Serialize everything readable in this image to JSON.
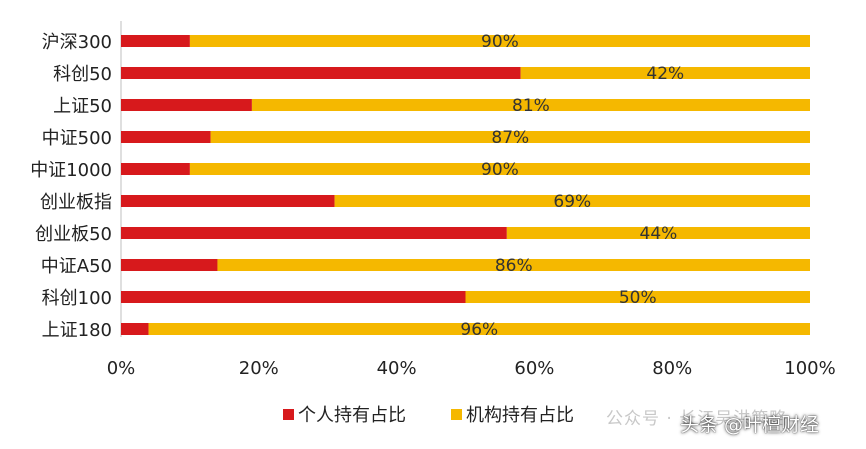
{
  "chart_data": {
    "type": "bar",
    "orientation": "horizontal",
    "stacked": true,
    "categories": [
      "沪深300",
      "科创50",
      "上证50",
      "中证500",
      "中证1000",
      "创业板指",
      "创业板50",
      "中证A50",
      "科创100",
      "上证180"
    ],
    "series": [
      {
        "name": "个人持有占比",
        "color": "#d7191c",
        "values": [
          10,
          58,
          19,
          13,
          10,
          31,
          56,
          14,
          50,
          4
        ]
      },
      {
        "name": "机构持有占比",
        "color": "#f5b800",
        "values": [
          90,
          42,
          81,
          87,
          90,
          69,
          44,
          86,
          50,
          96
        ]
      }
    ],
    "data_labels": [
      "90%",
      "42%",
      "81%",
      "87%",
      "90%",
      "69%",
      "44%",
      "86%",
      "50%",
      "96%"
    ],
    "x_ticks": [
      "0%",
      "20%",
      "40%",
      "60%",
      "80%",
      "100%"
    ],
    "xlim": [
      0,
      100
    ],
    "grid": false,
    "legend_position": "bottom"
  },
  "watermark": "公众号 · 长江吴洪策略",
  "source_label": "头条 @叶檀财经"
}
